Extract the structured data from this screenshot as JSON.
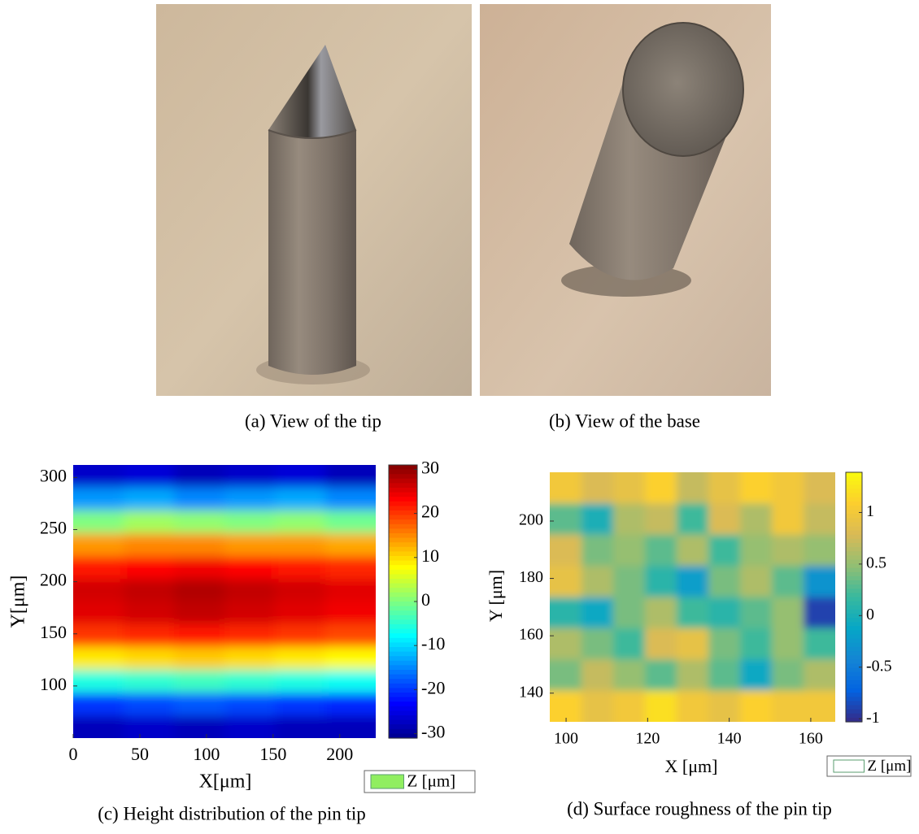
{
  "figures": [
    {
      "caption": "(a) View of the tip"
    },
    {
      "caption": "(b) View of the base"
    }
  ],
  "chart_data": [
    {
      "type": "heatmap",
      "caption": "(c) Height distribution of the pin tip",
      "xlabel": "X[μm]",
      "ylabel": "Y[μm]",
      "xlim": [
        0,
        227
      ],
      "xticks": [
        0,
        50,
        100,
        150,
        200
      ],
      "ylim": [
        50,
        312
      ],
      "yticks": [
        100,
        150,
        200,
        250,
        300
      ],
      "colormap": "jet",
      "clim": [
        -31,
        31
      ],
      "cticks": [
        30,
        20,
        10,
        0,
        -10,
        -20,
        -30
      ],
      "legend_label": "Z [μm]",
      "legend_color": "#90ee60",
      "z": [
        [
          -27,
          -26,
          -28,
          -27,
          -26,
          -28
        ],
        [
          -14,
          -13,
          -15,
          -14,
          -13,
          -15
        ],
        [
          0,
          2,
          1,
          0,
          1,
          -1
        ],
        [
          14,
          15,
          15,
          14,
          14,
          13
        ],
        [
          22,
          23,
          24,
          23,
          22,
          21
        ],
        [
          26,
          27,
          28,
          27,
          26,
          25
        ],
        [
          25,
          26,
          27,
          26,
          25,
          24
        ],
        [
          20,
          21,
          22,
          21,
          20,
          19
        ],
        [
          9,
          10,
          11,
          10,
          9,
          8
        ],
        [
          -6,
          -5,
          -4,
          -5,
          -6,
          -7
        ],
        [
          -20,
          -19,
          -18,
          -19,
          -20,
          -21
        ],
        [
          -28,
          -27,
          -28,
          -27,
          -28,
          -28
        ]
      ]
    },
    {
      "type": "heatmap",
      "caption": "(d) Surface roughness of the pin tip",
      "xlabel": "X [μm]",
      "ylabel": "Y [μm]",
      "xlim": [
        96,
        166
      ],
      "xticks": [
        100,
        120,
        140,
        160
      ],
      "ylim": [
        130,
        217
      ],
      "yticks": [
        140,
        160,
        180,
        200
      ],
      "colormap": "parula",
      "clim": [
        -1.03,
        1.39
      ],
      "cticks": [
        1,
        0.5,
        0,
        -0.5,
        -1
      ],
      "legend_label": "Z [μm]",
      "legend_color": "#ffffff",
      "z": [
        [
          1.0,
          0.8,
          0.9,
          1.1,
          0.7,
          0.9,
          1.1,
          1.0,
          0.8
        ],
        [
          0.3,
          0.0,
          0.6,
          0.7,
          0.2,
          0.8,
          0.6,
          1.0,
          0.7
        ],
        [
          0.8,
          0.4,
          0.5,
          0.3,
          0.6,
          0.2,
          0.5,
          0.6,
          0.5
        ],
        [
          0.9,
          0.6,
          0.4,
          0.1,
          -0.2,
          0.4,
          0.6,
          0.3,
          -0.3
        ],
        [
          0.1,
          -0.1,
          0.4,
          0.6,
          0.2,
          0.1,
          0.3,
          0.5,
          -0.9
        ],
        [
          0.6,
          0.4,
          0.2,
          0.8,
          0.9,
          0.4,
          0.2,
          0.5,
          0.2
        ],
        [
          0.4,
          0.7,
          0.5,
          0.3,
          0.6,
          0.3,
          -0.1,
          0.4,
          0.6
        ],
        [
          1.1,
          0.9,
          1.0,
          1.2,
          1.0,
          0.9,
          1.1,
          1.0,
          1.0
        ]
      ]
    }
  ]
}
